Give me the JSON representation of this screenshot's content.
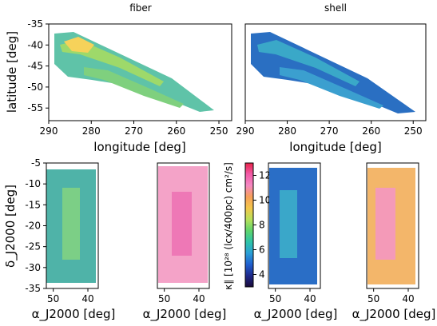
{
  "chart_data": [
    {
      "type": "heatmap",
      "title": "fiber",
      "xlabel": "longitude [deg]",
      "ylabel": "latitude [deg]",
      "xlim": [
        290,
        247
      ],
      "ylim": [
        -58,
        -35
      ],
      "x_ticks": [
        "290",
        "280",
        "270",
        "260",
        "250"
      ],
      "y_ticks": [
        "-35",
        "-40",
        "-45",
        "-50",
        "-55"
      ],
      "colormap": "viridis-like (sequential)",
      "description_values": {
        "dominant_level": 8,
        "peak_level": 11
      }
    },
    {
      "type": "heatmap",
      "title": "shell",
      "xlabel": "longitude [deg]",
      "ylabel": "",
      "xlim": [
        290,
        247
      ],
      "ylim": [
        -58,
        -35
      ],
      "x_ticks": [
        "290",
        "280",
        "270",
        "260",
        "250"
      ],
      "y_ticks": [],
      "description_values": {
        "dominant_level": 5,
        "peak_level": 8
      }
    },
    {
      "type": "heatmap",
      "title": "",
      "xlabel": "α_J2000 [deg]",
      "ylabel": "δ_J2000 [deg]",
      "xlim": [
        52,
        37
      ],
      "ylim": [
        -35,
        -5
      ],
      "x_ticks": [
        "50",
        "40"
      ],
      "y_ticks": [
        "-5",
        "-10",
        "-15",
        "-20",
        "-25",
        "-30",
        "-35"
      ],
      "description_values": {
        "dominant_level": 7,
        "peak_level": 9
      }
    },
    {
      "type": "heatmap",
      "title": "",
      "xlabel": "α_J2000 [deg]",
      "ylabel": "",
      "xlim": [
        52,
        37
      ],
      "ylim": [
        -35,
        -5
      ],
      "x_ticks": [
        "50",
        "40"
      ],
      "y_ticks": [],
      "description_values": {
        "dominant_level": 11,
        "peak_level": 12
      }
    },
    {
      "type": "heatmap",
      "title": "",
      "xlabel": "α_J2000 [deg]",
      "ylabel": "",
      "xlim": [
        52,
        37
      ],
      "ylim": [
        -35,
        -5
      ],
      "x_ticks": [
        "50",
        "40"
      ],
      "y_ticks": [],
      "description_values": {
        "dominant_level": 5,
        "peak_level": 7
      }
    },
    {
      "type": "heatmap",
      "title": "",
      "xlabel": "α_J2000 [deg]",
      "ylabel": "",
      "xlim": [
        52,
        37
      ],
      "ylim": [
        -35,
        -5
      ],
      "x_ticks": [
        "50",
        "40"
      ],
      "y_ticks": [],
      "description_values": {
        "dominant_level": 9,
        "peak_level": 10
      }
    }
  ],
  "colorbar": {
    "label": "κ∥ [10²⁸ (lcx/400pc) cm²/s]",
    "range": [
      3,
      13
    ],
    "ticks": [
      "4",
      "6",
      "8",
      "10",
      "12"
    ],
    "colors": [
      "#1a0a3a",
      "#1f2a8c",
      "#1f5fcf",
      "#2a9fd6",
      "#2ec4a8",
      "#5fd46b",
      "#b9e05a",
      "#f4c64a",
      "#f7a05a",
      "#f488c2",
      "#f25aa8",
      "#e8234a"
    ]
  }
}
